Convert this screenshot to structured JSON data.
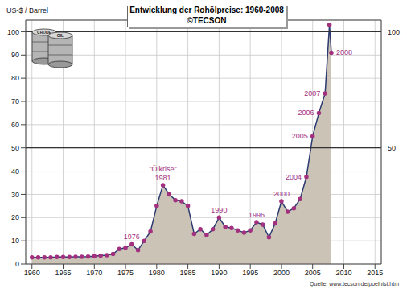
{
  "chart_data": {
    "type": "area",
    "title": "Entwicklung der Rohölpreise: 1960-2008",
    "subtitle": "©TECSON",
    "ylabel": "US-$ / Barrel",
    "source": "Quelle: www.tecson.de/poelhist.htm",
    "icon_labels": [
      "CRUDE",
      "OIL"
    ],
    "x": [
      1960,
      1961,
      1962,
      1963,
      1964,
      1965,
      1966,
      1967,
      1968,
      1969,
      1970,
      1971,
      1972,
      1973,
      1974,
      1975,
      1976,
      1977,
      1978,
      1979,
      1980,
      1981,
      1982,
      1983,
      1984,
      1985,
      1986,
      1987,
      1988,
      1989,
      1990,
      1991,
      1992,
      1993,
      1994,
      1995,
      1996,
      1997,
      1998,
      1999,
      2000,
      2001,
      2002,
      2003,
      2004,
      2005,
      2006,
      2007,
      2007.7,
      2008
    ],
    "values": [
      2.9,
      2.9,
      2.9,
      2.9,
      3.0,
      3.0,
      3.0,
      3.1,
      3.1,
      3.2,
      3.4,
      3.6,
      3.8,
      4.3,
      6.5,
      7.0,
      8.5,
      6.0,
      10.0,
      14.0,
      25.0,
      34.0,
      30.0,
      27.5,
      27.0,
      25.0,
      13.0,
      15.0,
      12.5,
      15.0,
      20.0,
      16.0,
      15.5,
      14.5,
      13.5,
      14.5,
      18.0,
      17.0,
      11.5,
      17.5,
      27.0,
      22.5,
      24.0,
      28.0,
      37.5,
      55.0,
      65.0,
      73.5,
      103.0,
      91.0
    ],
    "color": "#cbc4b6",
    "marker": "circle",
    "xlim": [
      1959,
      2016
    ],
    "xticks": [
      1960,
      1965,
      1970,
      1975,
      1980,
      1985,
      1990,
      1995,
      2000,
      2005,
      2010,
      2015
    ],
    "ylim": [
      0,
      105
    ],
    "yticks": [
      0,
      10,
      20,
      30,
      40,
      50,
      60,
      70,
      80,
      90,
      100
    ],
    "y2lim": [
      0,
      105
    ],
    "y2ticks": [
      50,
      100
    ],
    "grid": true,
    "annotations": [
      {
        "x": 1976,
        "text": [
          "1976"
        ],
        "position": "top"
      },
      {
        "x": 1981,
        "text": [
          "\"Ölkrise\"",
          "1981"
        ],
        "position": "top"
      },
      {
        "x": 1990,
        "text": [
          "1990"
        ],
        "position": "top"
      },
      {
        "x": 1996,
        "text": [
          "1996"
        ],
        "position": "top"
      },
      {
        "x": 2000,
        "text": [
          "2000"
        ],
        "position": "top"
      },
      {
        "x": 2004,
        "text": [
          "2004"
        ],
        "position": "left"
      },
      {
        "x": 2005,
        "text": [
          "2005"
        ],
        "position": "left"
      },
      {
        "x": 2006,
        "text": [
          "2006"
        ],
        "position": "left"
      },
      {
        "x": 2007,
        "text": [
          "2007"
        ],
        "position": "left"
      },
      {
        "x": 2008,
        "text": [
          "2008"
        ],
        "position": "right"
      }
    ]
  }
}
